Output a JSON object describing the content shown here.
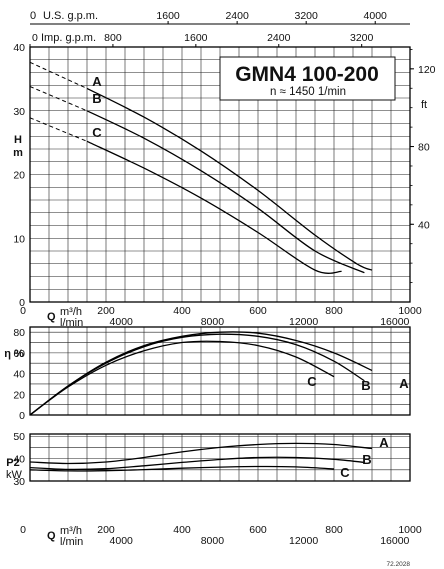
{
  "title": "GMN4 100-200",
  "subtitle": "n ≈ 1450 1/min",
  "figure_code": "72.2028",
  "axes": {
    "us_gpm": {
      "label": "U.S. g.p.m.",
      "zero": "0",
      "ticks": [
        "1600",
        "2400",
        "3200",
        "4000"
      ]
    },
    "imp_gpm": {
      "label": "Imp. g.p.m.",
      "ticks": [
        "0",
        "800",
        "1600",
        "2400",
        "3200"
      ]
    },
    "q_m3h": {
      "label": "m³/h",
      "ticks": [
        "0",
        "200",
        "400",
        "600",
        "800",
        "1000"
      ]
    },
    "q_lmin": {
      "label": "l/min",
      "ticks": [
        "4000",
        "8000",
        "12000",
        "16000"
      ]
    },
    "q_symbol": "Q",
    "head_m": {
      "label_top": "H",
      "label_bottom": "m",
      "ticks": [
        "0",
        "10",
        "20",
        "30",
        "40"
      ]
    },
    "head_ft": {
      "label": "ft",
      "ticks": [
        "40",
        "80",
        "120"
      ]
    },
    "eta": {
      "label": "η %",
      "ticks": [
        "0",
        "20",
        "40",
        "60",
        "80"
      ]
    },
    "power": {
      "label_top": "P2",
      "label_bottom": "kW",
      "ticks": [
        "30",
        "40",
        "50"
      ]
    }
  },
  "chart_data": [
    {
      "type": "line",
      "panel": "head",
      "xlabel": "Q m³/h",
      "ylabel": "H m",
      "xlim": [
        0,
        1000
      ],
      "ylim": [
        0,
        40
      ],
      "grid": true,
      "series": [
        {
          "name": "A",
          "x": [
            0,
            150,
            300,
            450,
            600,
            750,
            860,
            900
          ],
          "y": [
            37.6,
            33.5,
            29,
            23.7,
            17.5,
            10.5,
            6,
            5
          ]
        },
        {
          "name": "B",
          "x": [
            0,
            150,
            300,
            450,
            600,
            750,
            880
          ],
          "y": [
            33.8,
            30,
            25.7,
            20.6,
            14.7,
            8,
            4.6
          ]
        },
        {
          "name": "C",
          "x": [
            0,
            150,
            300,
            450,
            600,
            750,
            820
          ],
          "y": [
            28.9,
            25.2,
            21,
            16.3,
            10.9,
            5,
            4.8
          ]
        }
      ]
    },
    {
      "type": "line",
      "panel": "efficiency",
      "xlabel": "Q m³/h",
      "ylabel": "η %",
      "xlim": [
        0,
        1000
      ],
      "ylim": [
        0,
        85
      ],
      "grid": true,
      "series": [
        {
          "name": "A",
          "x": [
            0,
            100,
            200,
            300,
            400,
            500,
            600,
            700,
            800,
            900
          ],
          "y": [
            0,
            28,
            51,
            67,
            76,
            80,
            79,
            72,
            60,
            43
          ]
        },
        {
          "name": "B",
          "x": [
            0,
            100,
            200,
            300,
            400,
            500,
            600,
            700,
            800,
            880
          ],
          "y": [
            0,
            28,
            50,
            66,
            75,
            78,
            76,
            68,
            52,
            33
          ]
        },
        {
          "name": "C",
          "x": [
            0,
            100,
            200,
            300,
            400,
            500,
            600,
            700,
            800
          ],
          "y": [
            0,
            27,
            48,
            62,
            70,
            71,
            67,
            56,
            37
          ]
        }
      ]
    },
    {
      "type": "line",
      "panel": "power",
      "xlabel": "Q m³/h",
      "ylabel": "P2 kW",
      "xlim": [
        0,
        1000
      ],
      "ylim": [
        30,
        51
      ],
      "grid": true,
      "series": [
        {
          "name": "A",
          "x": [
            0,
            100,
            200,
            300,
            400,
            500,
            600,
            700,
            800,
            900
          ],
          "y": [
            38.5,
            37.8,
            38.5,
            40.5,
            43,
            45,
            46.3,
            46.8,
            46.3,
            44.5
          ]
        },
        {
          "name": "B",
          "x": [
            0,
            100,
            200,
            300,
            400,
            500,
            600,
            700,
            800,
            880
          ],
          "y": [
            36,
            35.2,
            35.5,
            36.8,
            38.3,
            39.6,
            40.5,
            40.5,
            39.7,
            38.3
          ]
        },
        {
          "name": "C",
          "x": [
            0,
            100,
            200,
            300,
            400,
            500,
            600,
            700,
            800
          ],
          "y": [
            35,
            34.5,
            34.6,
            35.1,
            35.7,
            36.2,
            36.5,
            36.3,
            35.4
          ]
        }
      ]
    }
  ]
}
